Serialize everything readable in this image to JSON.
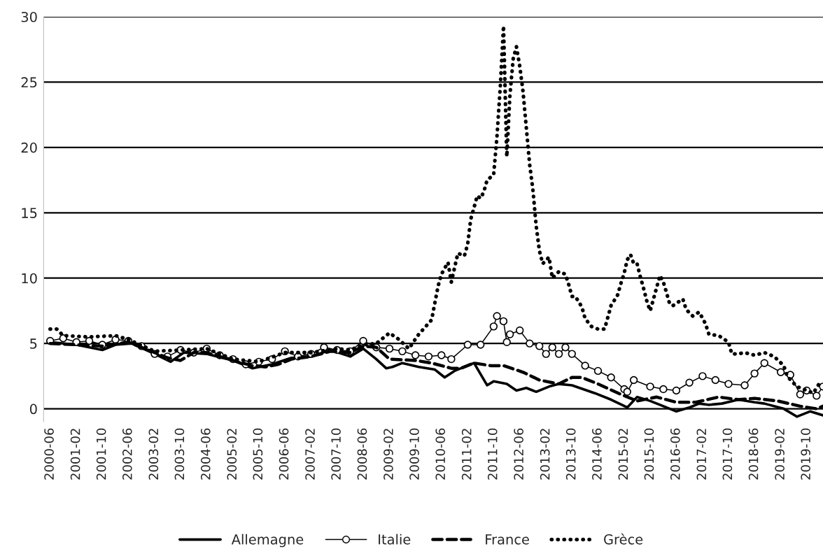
{
  "chart_data": {
    "type": "line",
    "xlim": [
      "2000-04",
      "2020-03"
    ],
    "ylim": [
      -1,
      30
    ],
    "yticks": [
      0,
      5,
      10,
      15,
      20,
      25,
      30
    ],
    "xticks": [
      "2000-06",
      "2001-02",
      "2001-10",
      "2002-06",
      "2003-02",
      "2003-10",
      "2004-06",
      "2005-02",
      "2005-10",
      "2006-06",
      "2007-02",
      "2007-10",
      "2008-06",
      "2009-02",
      "2009-10",
      "2010-06",
      "2011-02",
      "2011-10",
      "2012-06",
      "2013-02",
      "2013-10",
      "2014-06",
      "2015-02",
      "2015-10",
      "2016-06",
      "2017-02",
      "2017-10",
      "2018-06",
      "2019-02",
      "2019-10"
    ],
    "grid": "y",
    "legend": "bottom",
    "series": [
      {
        "name": "Allemagne",
        "color": "#000000",
        "line_style": "solid",
        "marker": "none",
        "x": [
          "2000-06",
          "2001-02",
          "2001-10",
          "2002-02",
          "2002-07",
          "2003-02",
          "2003-07",
          "2003-11",
          "2004-06",
          "2005-02",
          "2005-08",
          "2006-02",
          "2006-08",
          "2007-02",
          "2007-08",
          "2008-02",
          "2008-06",
          "2008-10",
          "2009-01",
          "2009-03",
          "2009-06",
          "2009-11",
          "2010-04",
          "2010-07",
          "2010-10",
          "2011-04",
          "2011-08",
          "2011-10",
          "2012-02",
          "2012-05",
          "2012-08",
          "2012-11",
          "2013-03",
          "2013-06",
          "2013-10",
          "2014-05",
          "2014-10",
          "2015-03",
          "2015-06",
          "2015-10",
          "2016-02",
          "2016-06",
          "2016-10",
          "2017-01",
          "2017-04",
          "2017-08",
          "2018-01",
          "2018-06",
          "2018-09",
          "2019-03",
          "2019-07",
          "2019-11",
          "2020-03"
        ],
        "values": [
          5.1,
          4.9,
          4.5,
          4.9,
          5.0,
          4.2,
          3.6,
          4.3,
          4.2,
          3.7,
          3.1,
          3.4,
          3.9,
          4.0,
          4.5,
          4.0,
          4.6,
          3.8,
          3.1,
          3.2,
          3.5,
          3.2,
          3.0,
          2.4,
          2.9,
          3.5,
          1.8,
          2.1,
          1.9,
          1.4,
          1.6,
          1.3,
          1.7,
          1.9,
          1.8,
          1.2,
          0.7,
          0.1,
          0.9,
          0.6,
          0.2,
          -0.2,
          0.1,
          0.4,
          0.3,
          0.4,
          0.7,
          0.5,
          0.4,
          0.0,
          -0.6,
          -0.2,
          -0.5
        ]
      },
      {
        "name": "Italie",
        "color": "#000000",
        "line_style": "solid",
        "marker": "circle",
        "x": [
          "2000-06",
          "2000-10",
          "2001-02",
          "2001-06",
          "2001-10",
          "2002-02",
          "2002-06",
          "2002-10",
          "2003-02",
          "2003-06",
          "2003-10",
          "2004-02",
          "2004-06",
          "2004-10",
          "2005-02",
          "2005-06",
          "2005-10",
          "2006-02",
          "2006-06",
          "2006-10",
          "2007-02",
          "2007-06",
          "2007-10",
          "2008-02",
          "2008-06",
          "2008-10",
          "2009-02",
          "2009-06",
          "2009-10",
          "2010-02",
          "2010-06",
          "2010-09",
          "2011-02",
          "2011-06",
          "2011-10",
          "2011-11",
          "2012-01",
          "2012-02",
          "2012-03",
          "2012-06",
          "2012-09",
          "2012-12",
          "2013-02",
          "2013-04",
          "2013-06",
          "2013-08",
          "2013-10",
          "2014-02",
          "2014-06",
          "2014-10",
          "2015-02",
          "2015-03",
          "2015-05",
          "2015-10",
          "2016-02",
          "2016-06",
          "2016-10",
          "2017-02",
          "2017-06",
          "2017-10",
          "2018-03",
          "2018-06",
          "2018-09",
          "2019-02",
          "2019-05",
          "2019-08",
          "2019-10",
          "2020-01",
          "2020-03"
        ],
        "values": [
          5.2,
          5.4,
          5.1,
          5.2,
          4.9,
          5.3,
          5.2,
          4.8,
          4.2,
          4.0,
          4.5,
          4.3,
          4.6,
          4.1,
          3.8,
          3.4,
          3.6,
          3.8,
          4.4,
          4.0,
          4.2,
          4.7,
          4.5,
          4.4,
          5.2,
          4.7,
          4.6,
          4.4,
          4.1,
          4.0,
          4.1,
          3.8,
          4.9,
          4.9,
          6.3,
          7.1,
          6.7,
          5.1,
          5.7,
          6.0,
          5.0,
          4.8,
          4.2,
          4.7,
          4.2,
          4.7,
          4.2,
          3.3,
          2.9,
          2.4,
          1.5,
          1.3,
          2.2,
          1.7,
          1.5,
          1.4,
          2.0,
          2.5,
          2.2,
          1.9,
          1.8,
          2.7,
          3.5,
          2.8,
          2.6,
          1.1,
          1.4,
          1.0,
          1.7
        ]
      },
      {
        "name": "France",
        "color": "#000000",
        "line_style": "dashed",
        "marker": "none",
        "x": [
          "2000-06",
          "2001-02",
          "2001-10",
          "2002-06",
          "2003-02",
          "2003-06",
          "2003-10",
          "2004-02",
          "2004-06",
          "2005-02",
          "2005-08",
          "2005-12",
          "2006-04",
          "2006-08",
          "2007-02",
          "2007-08",
          "2008-02",
          "2008-06",
          "2008-10",
          "2009-02",
          "2009-10",
          "2010-03",
          "2010-09",
          "2010-12",
          "2011-04",
          "2011-09",
          "2012-01",
          "2012-07",
          "2012-12",
          "2013-06",
          "2013-10",
          "2014-01",
          "2014-06",
          "2015-01",
          "2015-06",
          "2015-12",
          "2016-06",
          "2016-12",
          "2017-07",
          "2018-01",
          "2018-06",
          "2019-01",
          "2019-08",
          "2020-01",
          "2020-03"
        ],
        "values": [
          5.0,
          4.9,
          4.8,
          5.1,
          4.3,
          3.9,
          3.7,
          4.3,
          4.3,
          3.7,
          3.3,
          3.2,
          3.4,
          3.8,
          4.0,
          4.4,
          4.3,
          4.8,
          4.7,
          3.8,
          3.7,
          3.5,
          3.1,
          3.1,
          3.5,
          3.3,
          3.3,
          2.8,
          2.2,
          1.9,
          2.4,
          2.4,
          1.9,
          1.1,
          0.6,
          0.9,
          0.5,
          0.5,
          0.9,
          0.7,
          0.8,
          0.6,
          0.2,
          0.0,
          0.2
        ]
      },
      {
        "name": "Grèce",
        "color": "#000000",
        "line_style": "dotted",
        "marker": "none",
        "x": [
          "2000-06",
          "2000-08",
          "2000-10",
          "2001-06",
          "2002-02",
          "2002-06",
          "2003-02",
          "2003-10",
          "2004-06",
          "2005-02",
          "2005-10",
          "2006-06",
          "2007-02",
          "2007-10",
          "2008-02",
          "2008-06",
          "2008-10",
          "2009-02",
          "2009-05",
          "2009-08",
          "2009-11",
          "2010-03",
          "2010-05",
          "2010-06",
          "2010-08",
          "2010-09",
          "2010-11",
          "2011-01",
          "2011-02",
          "2011-03",
          "2011-04",
          "2011-05",
          "2011-06",
          "2011-07",
          "2011-08",
          "2011-10",
          "2011-11",
          "2011-12",
          "2012-01",
          "2012-02",
          "2012-03",
          "2012-04",
          "2012-05",
          "2012-06",
          "2012-07",
          "2012-08",
          "2012-09",
          "2012-10",
          "2012-11",
          "2012-12",
          "2013-01",
          "2013-03",
          "2013-04",
          "2013-06",
          "2013-08",
          "2013-09",
          "2013-10",
          "2013-11",
          "2014-01",
          "2014-02",
          "2014-04",
          "2014-06",
          "2014-08",
          "2014-09",
          "2014-10",
          "2014-12",
          "2015-01",
          "2015-02",
          "2015-03",
          "2015-04",
          "2015-05",
          "2015-06",
          "2015-07",
          "2015-08",
          "2015-09",
          "2015-10",
          "2015-11",
          "2015-12",
          "2016-01",
          "2016-02",
          "2016-03",
          "2016-04",
          "2016-05",
          "2016-08",
          "2016-09",
          "2016-11",
          "2017-01",
          "2017-03",
          "2017-04",
          "2017-07",
          "2017-10",
          "2017-11",
          "2018-01",
          "2018-03",
          "2018-06",
          "2018-09",
          "2018-12",
          "2019-03",
          "2019-04",
          "2019-07",
          "2019-10",
          "2019-12",
          "2020-02"
        ],
        "values": [
          6.1,
          6.1,
          5.6,
          5.5,
          5.6,
          5.3,
          4.4,
          4.5,
          4.6,
          3.8,
          3.6,
          4.3,
          4.3,
          4.6,
          4.5,
          4.9,
          5.0,
          5.8,
          5.3,
          4.6,
          5.7,
          6.8,
          9.4,
          10.3,
          11.2,
          9.7,
          11.9,
          11.7,
          12.6,
          14.5,
          15.4,
          16.3,
          16.1,
          16.6,
          17.5,
          17.9,
          20.8,
          24.5,
          29.3,
          19.3,
          24.0,
          26.8,
          27.7,
          26.2,
          24.3,
          21.5,
          18.7,
          16.8,
          14.0,
          12.1,
          11.1,
          11.6,
          10.0,
          10.5,
          10.3,
          9.5,
          8.6,
          8.6,
          7.8,
          6.9,
          6.3,
          6.1,
          6.1,
          7.0,
          7.9,
          8.7,
          9.6,
          10.4,
          11.4,
          11.8,
          11.1,
          11.1,
          10.1,
          9.2,
          8.2,
          7.5,
          8.4,
          9.3,
          10.2,
          9.7,
          8.9,
          8.0,
          7.9,
          8.4,
          7.6,
          7.1,
          7.4,
          6.5,
          5.7,
          5.6,
          5.1,
          4.2,
          4.2,
          4.3,
          4.1,
          4.3,
          4.0,
          3.3,
          2.5,
          1.7,
          1.4,
          1.2,
          2.0
        ]
      }
    ]
  }
}
